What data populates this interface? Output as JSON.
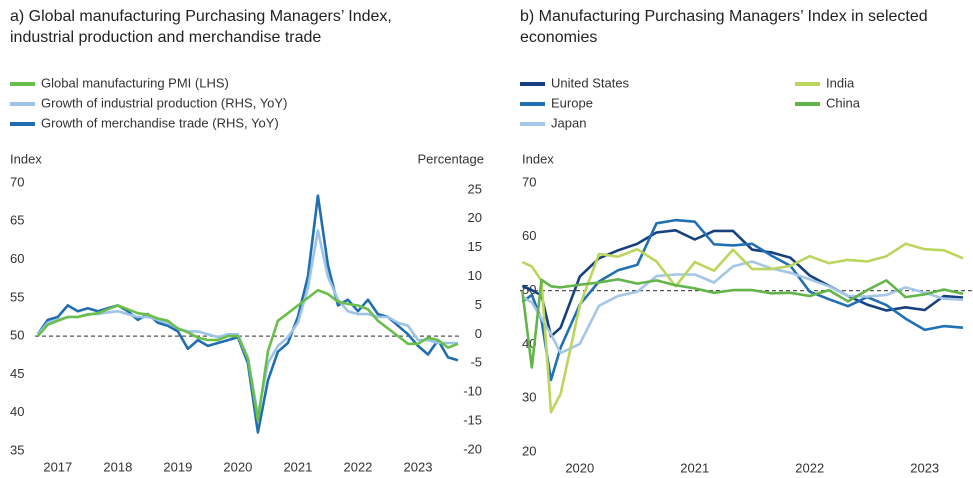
{
  "chart_data": [
    {
      "type": "line",
      "title": "a) Global manufacturing Purchasing Managers’ Index, industrial production and merchandise trade",
      "ylabel": "Index",
      "y2label": "Percentage",
      "x": [
        2016.667,
        2016.833,
        2017.0,
        2017.167,
        2017.333,
        2017.5,
        2017.667,
        2017.833,
        2018.0,
        2018.167,
        2018.333,
        2018.5,
        2018.667,
        2018.833,
        2019.0,
        2019.167,
        2019.333,
        2019.5,
        2019.667,
        2019.833,
        2020.0,
        2020.167,
        2020.333,
        2020.5,
        2020.667,
        2020.833,
        2021.0,
        2021.167,
        2021.333,
        2021.5,
        2021.667,
        2021.833,
        2022.0,
        2022.167,
        2022.333,
        2022.5,
        2022.667,
        2022.833,
        2023.0,
        2023.167,
        2023.333,
        2023.5,
        2023.667
      ],
      "xlim": [
        2016.62,
        2023.7
      ],
      "xticks": [
        2017,
        2018,
        2019,
        2020,
        2021,
        2022,
        2023
      ],
      "ylim": [
        35,
        70
      ],
      "yticks": [
        35,
        40,
        45,
        50,
        55,
        60,
        65,
        70
      ],
      "y2lim": [
        -20.2,
        26.2
      ],
      "y2ticks": [
        -20,
        -15,
        -10,
        -5,
        0,
        5,
        10,
        15,
        20,
        25
      ],
      "hline": 50,
      "series": [
        {
          "name": "Global manufacturing PMI (LHS)",
          "color": "#6abf4b",
          "values": [
            50.0,
            51.5,
            52.0,
            52.5,
            52.5,
            52.8,
            53.0,
            53.5,
            54.0,
            53.5,
            53.0,
            52.8,
            52.3,
            52.0,
            51.0,
            50.5,
            49.8,
            49.5,
            49.5,
            50.0,
            50.0,
            47.0,
            39.0,
            48.0,
            52.0,
            53.0,
            54.0,
            55.0,
            56.0,
            55.5,
            54.5,
            54.2,
            54.0,
            53.5,
            52.0,
            51.0,
            50.0,
            49.0,
            49.0,
            49.8,
            49.5,
            48.5,
            49.0
          ]
        },
        {
          "name": "Growth of industrial production (RHS, YoY)",
          "color": "#9dc3e6",
          "axis": "y2",
          "values": [
            0.0,
            2.0,
            2.5,
            3.0,
            3.0,
            3.5,
            3.5,
            3.8,
            4.0,
            3.5,
            3.0,
            3.0,
            2.5,
            2.0,
            1.0,
            0.5,
            0.5,
            0.0,
            -0.5,
            0.0,
            0.0,
            -4.0,
            -14.0,
            -5.0,
            -2.0,
            -0.5,
            2.0,
            8.0,
            18.0,
            10.0,
            6.0,
            4.0,
            3.5,
            3.5,
            3.0,
            3.0,
            2.0,
            1.5,
            -1.0,
            -1.0,
            -1.5,
            -1.5,
            -1.5
          ]
        },
        {
          "name": "Growth of merchandise trade (RHS, YoY)",
          "color": "#1f6fb0",
          "axis": "y2",
          "values": [
            0.0,
            2.5,
            3.0,
            5.0,
            4.0,
            4.5,
            4.0,
            4.5,
            5.0,
            4.0,
            2.5,
            3.5,
            2.0,
            1.5,
            0.5,
            -2.5,
            -1.0,
            -2.0,
            -1.5,
            -1.0,
            -0.5,
            -5.0,
            -17.0,
            -8.0,
            -3.0,
            -1.5,
            3.0,
            10.0,
            24.0,
            12.0,
            5.0,
            6.0,
            4.0,
            6.0,
            3.5,
            3.0,
            1.5,
            0.0,
            -2.0,
            -3.5,
            -1.0,
            -4.0,
            -4.5
          ]
        }
      ]
    },
    {
      "type": "line",
      "title": "b) Manufacturing Purchasing Managers’ Index in selected economies",
      "ylabel": "Index",
      "x": [
        2020.0,
        2020.083,
        2020.167,
        2020.25,
        2020.333,
        2020.5,
        2020.667,
        2020.833,
        2021.0,
        2021.167,
        2021.333,
        2021.5,
        2021.667,
        2021.833,
        2022.0,
        2022.167,
        2022.333,
        2022.5,
        2022.667,
        2022.833,
        2023.0,
        2023.167,
        2023.333,
        2023.5,
        2023.667,
        2023.833
      ],
      "xlim": [
        2019.98,
        2023.92
      ],
      "xticks": [
        {
          "value": 2020.5,
          "label": "2020"
        },
        {
          "value": 2021.5,
          "label": "2021"
        },
        {
          "value": 2022.5,
          "label": "2022"
        },
        {
          "value": 2023.5,
          "label": "2023"
        }
      ],
      "ylim": [
        20,
        70
      ],
      "yticks": [
        20,
        30,
        40,
        50,
        60,
        70
      ],
      "hline": 50,
      "series": [
        {
          "name": "United States",
          "color": "#17407e",
          "values": [
            50.9,
            50.1,
            49.1,
            41.5,
            43.1,
            52.6,
            56.0,
            57.5,
            58.7,
            60.8,
            61.2,
            59.5,
            61.1,
            61.1,
            57.6,
            57.1,
            56.1,
            52.8,
            50.9,
            49.0,
            47.4,
            46.3,
            46.9,
            46.4,
            49.0,
            48.7
          ]
        },
        {
          "name": "Europe",
          "color": "#2170b5",
          "values": [
            47.9,
            49.2,
            44.5,
            33.4,
            39.4,
            47.4,
            51.7,
            53.8,
            54.8,
            62.5,
            63.1,
            62.8,
            58.6,
            58.4,
            58.7,
            56.5,
            54.6,
            49.8,
            48.4,
            47.1,
            48.8,
            47.3,
            44.8,
            42.7,
            43.4,
            43.1
          ]
        },
        {
          "name": "Japan",
          "color": "#a4c6e8",
          "values": [
            48.8,
            47.8,
            44.8,
            41.9,
            38.4,
            40.1,
            47.2,
            49.0,
            49.8,
            52.7,
            53.0,
            53.0,
            51.5,
            54.5,
            55.4,
            54.1,
            53.3,
            52.1,
            50.8,
            49.0,
            48.9,
            49.2,
            50.6,
            49.6,
            48.5,
            48.3
          ]
        },
        {
          "name": "India",
          "color": "#bad65c",
          "values": [
            55.3,
            54.5,
            51.8,
            27.4,
            30.8,
            47.2,
            56.8,
            56.3,
            57.7,
            55.4,
            50.8,
            55.3,
            53.7,
            57.6,
            54.0,
            54.0,
            54.6,
            56.4,
            55.1,
            55.7,
            55.4,
            56.4,
            58.7,
            57.7,
            57.5,
            56.0
          ]
        },
        {
          "name": "China",
          "color": "#63b54a",
          "values": [
            50.0,
            35.7,
            52.0,
            50.8,
            50.6,
            51.1,
            51.5,
            52.1,
            51.3,
            51.9,
            51.0,
            50.4,
            49.6,
            50.1,
            50.1,
            49.5,
            49.6,
            49.0,
            50.1,
            48.0,
            50.1,
            51.9,
            48.8,
            49.3,
            50.2,
            49.4
          ]
        }
      ]
    }
  ]
}
